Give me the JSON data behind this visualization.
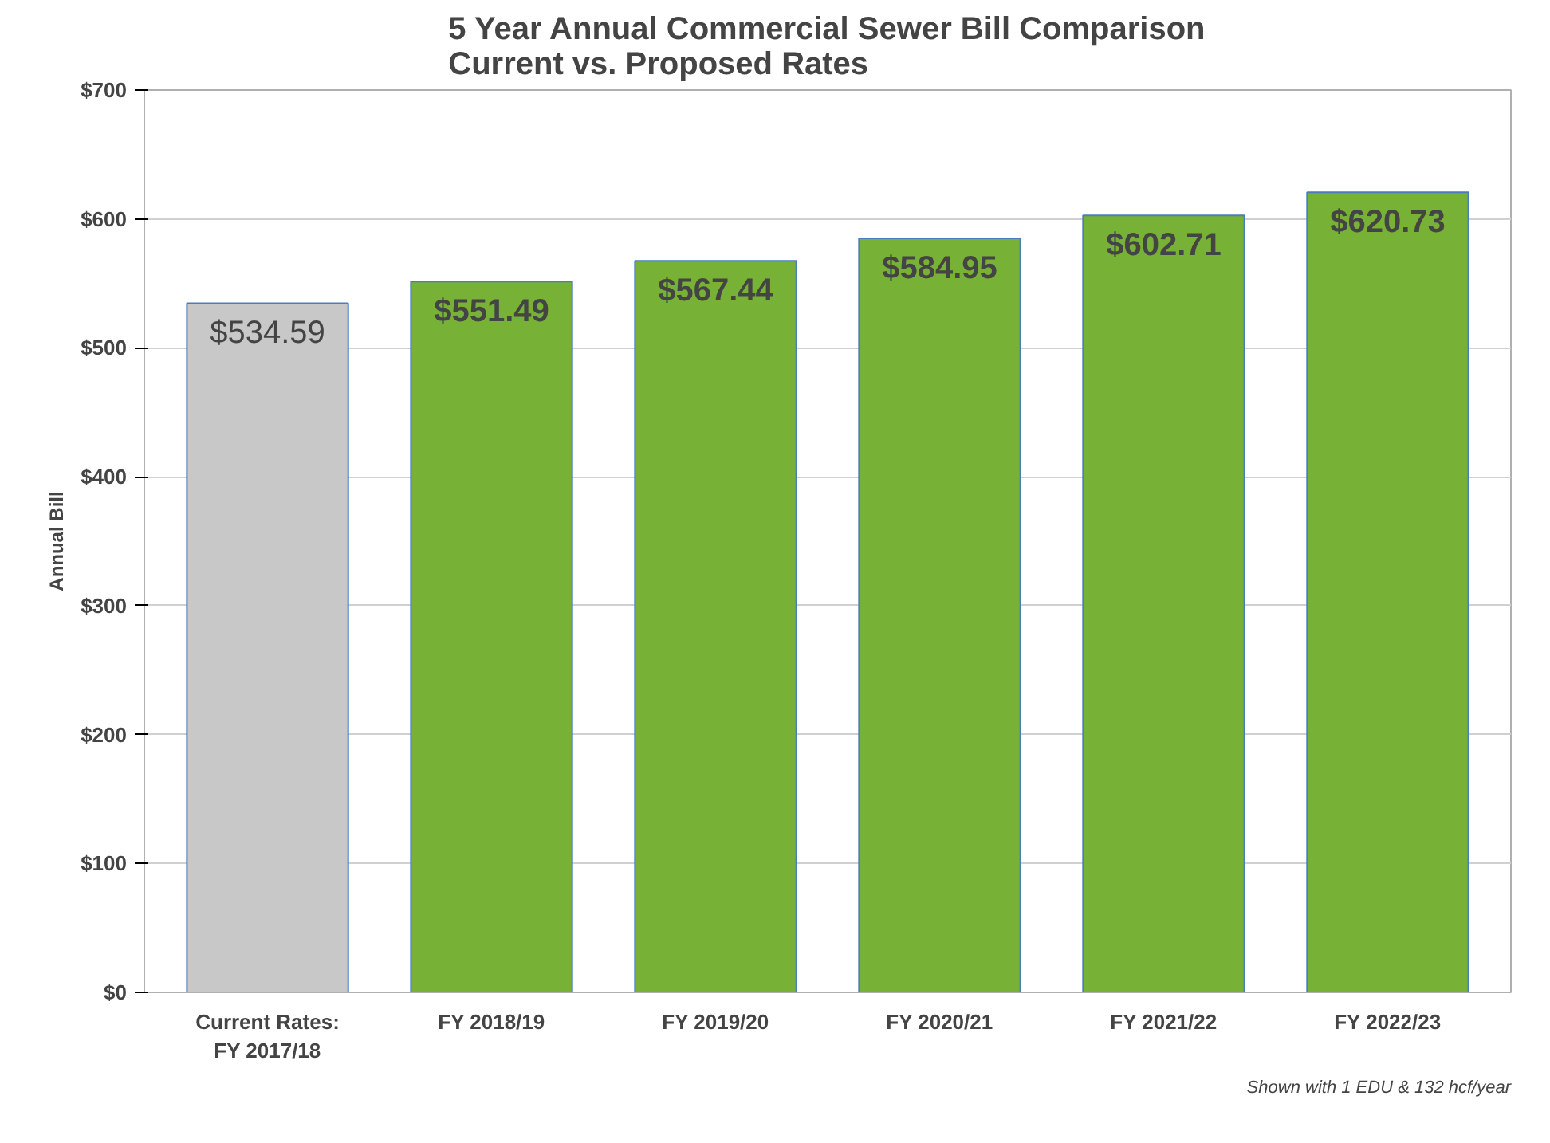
{
  "chart_data": {
    "type": "bar",
    "title": "5 Year Annual Commercial Sewer Bill Comparison\nCurrent vs. Proposed Rates",
    "ylabel": "Annual Bill",
    "categories": [
      "Current Rates:\nFY 2017/18",
      "FY 2018/19",
      "FY 2019/20",
      "FY 2020/21",
      "FY 2021/22",
      "FY 2022/23"
    ],
    "values": [
      534.59,
      551.49,
      567.44,
      584.95,
      602.71,
      620.73
    ],
    "colors": [
      "#c8c8c8",
      "#77b236",
      "#77b236",
      "#77b236",
      "#77b236",
      "#77b236"
    ],
    "value_labels": [
      "$534.59",
      "$551.49",
      "$567.44",
      "$584.95",
      "$602.71",
      "$620.73"
    ],
    "ylim": [
      0,
      700
    ],
    "yticks": [
      {
        "value": 0,
        "label": "$0"
      },
      {
        "value": 100,
        "label": "$100"
      },
      {
        "value": 200,
        "label": "$200"
      },
      {
        "value": 300,
        "label": "$300"
      },
      {
        "value": 400,
        "label": "$400"
      },
      {
        "value": 500,
        "label": "$500"
      },
      {
        "value": 600,
        "label": "$600"
      },
      {
        "value": 700,
        "label": "$700"
      }
    ],
    "grid": "y",
    "annotations": [
      "Shown with 1 EDU & 132 hcf/year"
    ]
  }
}
